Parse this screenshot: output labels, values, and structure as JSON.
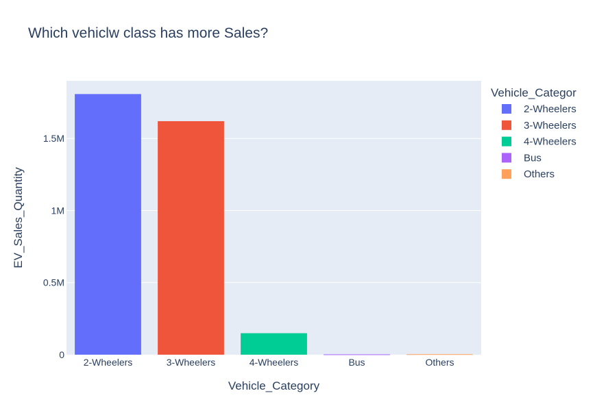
{
  "chart_data": {
    "type": "bar",
    "title": "Which vehiclw class has more Sales?",
    "xlabel": "Vehicle_Category",
    "ylabel": "EV_Sales_Quantity",
    "categories": [
      "2-Wheelers",
      "3-Wheelers",
      "4-Wheelers",
      "Bus",
      "Others"
    ],
    "values": [
      1808000,
      1620000,
      149000,
      2500,
      3500
    ],
    "colors": [
      "#636efa",
      "#ef553b",
      "#00cc96",
      "#ab63fa",
      "#ffa15a"
    ],
    "ylim": [
      0,
      1900000
    ],
    "yticks": [
      0,
      500000,
      1000000,
      1500000
    ],
    "ytick_labels": [
      "0",
      "0.5M",
      "1M",
      "1.5M"
    ],
    "grid": true,
    "legend": {
      "title": "Vehicle_Categor",
      "placement": "right",
      "entries": [
        "2-Wheelers",
        "3-Wheelers",
        "4-Wheelers",
        "Bus",
        "Others"
      ]
    }
  }
}
